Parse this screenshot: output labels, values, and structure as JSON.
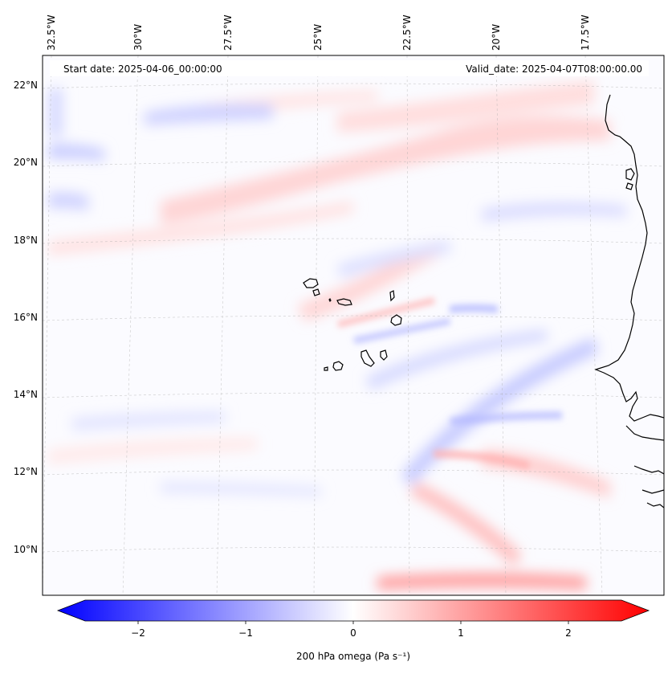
{
  "header": {
    "start_date": "Start date: 2025-04-06_00:00:00",
    "valid_date": "Valid_date: 2025-04-07T08:00:00.00"
  },
  "map": {
    "lon_ticks": [
      "32.5°W",
      "30°W",
      "27.5°W",
      "25°W",
      "22.5°W",
      "20°W",
      "17.5°W"
    ],
    "lat_ticks": [
      "22°N",
      "20°N",
      "18°N",
      "16°N",
      "14°N",
      "12°N",
      "10°N"
    ],
    "gridlines": true,
    "field": "200 hPa omega contour fill, mostly near zero with weak bands"
  },
  "colorbar": {
    "label": "200 hPa omega (Pa s⁻¹)",
    "ticks": [
      "−2",
      "−1",
      "0",
      "1",
      "2"
    ],
    "min": -2.5,
    "max": 2.5,
    "low_color": "#0000ff",
    "mid_color": "#ffffff",
    "high_color": "#ff0000"
  }
}
